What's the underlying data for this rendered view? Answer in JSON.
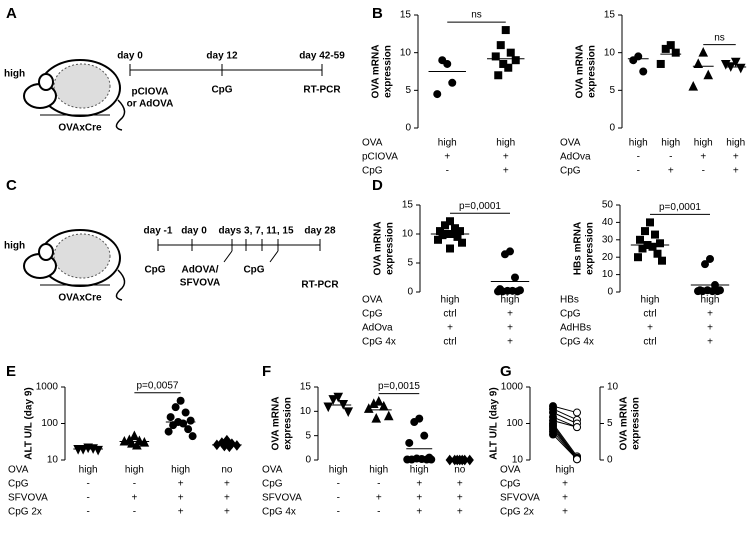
{
  "panel_letters": [
    "A",
    "B",
    "C",
    "D",
    "E",
    "F",
    "G"
  ],
  "diagrams": [
    {
      "group_label": "high",
      "mouse_label": "OVAxCre",
      "timepoints": [
        {
          "day": "day 0",
          "event": [
            "pCIOVA",
            "or AdOVA"
          ]
        },
        {
          "day": "day 12",
          "event": [
            "CpG"
          ]
        },
        {
          "day": "day 42-59",
          "event": [
            "RT-PCR"
          ]
        }
      ]
    },
    {
      "group_label": "high",
      "mouse_label": "OVAxCre",
      "timepoints": [
        {
          "day": "day -1",
          "event": [
            "CpG"
          ]
        },
        {
          "day": "day 0",
          "event": [
            "AdOVA/",
            "SFVOVA"
          ]
        },
        {
          "day": "days 3, 7, 11, 15",
          "event": [
            "CpG"
          ]
        },
        {
          "day": "day 28",
          "event": [
            "RT-PCR"
          ]
        }
      ]
    }
  ],
  "chart_data": [
    {
      "type": "dotplot",
      "ylabel": [
        "OVA mRNA",
        "expression"
      ],
      "ylim": [
        0,
        15
      ],
      "yticks": [
        0,
        5,
        10,
        15
      ],
      "color": "#000000",
      "groups": [
        {
          "marker": "circle",
          "values": [
            8.5,
            9,
            6,
            4.5
          ],
          "mean": 7.5
        },
        {
          "marker": "square",
          "values": [
            13,
            11,
            10,
            9.5,
            9,
            8.5,
            8,
            7
          ],
          "mean": 9.2
        }
      ],
      "brackets": [
        {
          "groups": [
            0,
            1
          ],
          "label": "ns"
        }
      ],
      "table": [
        {
          "label": "OVA",
          "cells": [
            "high",
            "high"
          ]
        },
        {
          "label": "pCIOVA",
          "cells": [
            "+",
            "+"
          ]
        },
        {
          "label": "CpG",
          "cells": [
            "-",
            "+"
          ]
        }
      ]
    },
    {
      "type": "dotplot",
      "ylabel": [
        "OVA mRNA",
        "expression"
      ],
      "ylim": [
        0,
        15
      ],
      "yticks": [
        0,
        5,
        10,
        15
      ],
      "color": "#000000",
      "groups": [
        {
          "marker": "circle",
          "values": [
            9.5,
            9,
            7.5
          ],
          "mean": 9.2
        },
        {
          "marker": "square",
          "values": [
            11,
            10.5,
            10,
            8.5
          ],
          "mean": 9.8
        },
        {
          "marker": "triangle",
          "values": [
            10,
            8.5,
            7,
            5.5
          ],
          "mean": 8.2
        },
        {
          "marker": "triangle-down",
          "values": [
            8.8,
            8.2,
            8,
            8.5
          ],
          "mean": 8.1
        }
      ],
      "brackets": [
        {
          "groups": [
            2,
            3
          ],
          "label": "ns"
        }
      ],
      "table": [
        {
          "label": "OVA",
          "cells": [
            "high",
            "high",
            "high",
            "high"
          ]
        },
        {
          "label": "AdOva",
          "cells": [
            "-",
            "-",
            "+",
            "+"
          ]
        },
        {
          "label": "CpG",
          "cells": [
            "-",
            "+",
            "-",
            "+"
          ]
        }
      ]
    },
    {
      "type": "dotplot",
      "ylabel": [
        "OVA mRNA",
        "expression"
      ],
      "ylim": [
        0,
        15
      ],
      "yticks": [
        0,
        5,
        10,
        15
      ],
      "color": "#000000",
      "groups": [
        {
          "marker": "square",
          "values": [
            12.2,
            11.5,
            11,
            10.5,
            10.5,
            10,
            10,
            9.8,
            9.5,
            9,
            8.5,
            7.5
          ],
          "mean": 10
        },
        {
          "marker": "circle",
          "values": [
            7,
            6.5,
            2.5,
            0.5,
            0.3,
            0.2,
            0.2,
            0.1,
            0.1,
            0.1
          ],
          "mean": 1.8
        }
      ],
      "brackets": [
        {
          "groups": [
            0,
            1
          ],
          "label": "p=0,0001"
        }
      ],
      "table": [
        {
          "label": "OVA",
          "cells": [
            "high",
            "high"
          ]
        },
        {
          "label": "CpG",
          "cells": [
            "ctrl",
            "+"
          ]
        },
        {
          "label": "AdOva",
          "cells": [
            "+",
            "+"
          ]
        },
        {
          "label": "CpG 4x",
          "cells": [
            "ctrl",
            "+"
          ]
        }
      ]
    },
    {
      "type": "dotplot",
      "ylabel": [
        "HBs mRNA",
        "expression"
      ],
      "ylim": [
        0,
        50
      ],
      "yticks": [
        0,
        10,
        20,
        30,
        40,
        50
      ],
      "color": "#000000",
      "groups": [
        {
          "marker": "square",
          "values": [
            40,
            35,
            33,
            30,
            28,
            27,
            26,
            25,
            22,
            20,
            18
          ],
          "mean": 27
        },
        {
          "marker": "circle",
          "values": [
            19,
            16,
            4,
            1,
            1,
            1,
            0.5,
            0.5,
            0.5,
            0.5
          ],
          "mean": 4
        }
      ],
      "brackets": [
        {
          "groups": [
            0,
            1
          ],
          "label": "p=0,0001"
        }
      ],
      "table": [
        {
          "label": "HBs",
          "cells": [
            "high",
            "high"
          ]
        },
        {
          "label": "CpG",
          "cells": [
            "ctrl",
            "+"
          ]
        },
        {
          "label": "AdHBs",
          "cells": [
            "+",
            "+"
          ]
        },
        {
          "label": "CpG 4x",
          "cells": [
            "ctrl",
            "+"
          ]
        }
      ]
    },
    {
      "type": "dotplot",
      "ylabel": [
        "ALT U/L (day 9)"
      ],
      "log": true,
      "ylim": [
        10,
        1000
      ],
      "yticks": [
        10,
        100,
        1000
      ],
      "color": "#000000",
      "groups": [
        {
          "marker": "triangle-down",
          "values": [
            22,
            20,
            21,
            20,
            19
          ],
          "mean": 20
        },
        {
          "marker": "triangle",
          "values": [
            45,
            35,
            33,
            32,
            30,
            28,
            25
          ],
          "mean": 32
        },
        {
          "marker": "circle",
          "values": [
            420,
            280,
            200,
            150,
            120,
            110,
            100,
            90,
            70,
            60,
            45
          ],
          "mean": 110
        },
        {
          "marker": "diamond",
          "values": [
            35,
            30,
            28,
            26,
            25,
            24,
            23
          ],
          "mean": 26
        }
      ],
      "brackets": [
        {
          "groups": [
            1,
            2
          ],
          "label": "p=0,0057"
        }
      ],
      "table": [
        {
          "label": "OVA",
          "cells": [
            "high",
            "high",
            "high",
            "no"
          ]
        },
        {
          "label": "CpG",
          "cells": [
            "-",
            "-",
            "+",
            "+"
          ]
        },
        {
          "label": "SFVOVA",
          "cells": [
            "-",
            "+",
            "+",
            "+"
          ]
        },
        {
          "label": "CpG 2x",
          "cells": [
            "-",
            "-",
            "+",
            "+"
          ]
        }
      ]
    },
    {
      "type": "dotplot",
      "ylabel": [
        "OVA mRNA",
        "expression"
      ],
      "ylim": [
        0,
        15
      ],
      "yticks": [
        0,
        5,
        10,
        15
      ],
      "color": "#000000",
      "groups": [
        {
          "marker": "triangle-down",
          "values": [
            13,
            12.5,
            11.5,
            11,
            10
          ],
          "mean": 11.3
        },
        {
          "marker": "triangle",
          "values": [
            12,
            11.5,
            11,
            10.5,
            9,
            8.5
          ],
          "mean": 10.3
        },
        {
          "marker": "circle",
          "values": [
            8.5,
            7.8,
            5,
            3.5,
            0.5,
            0.3,
            0.2,
            0.1,
            0.1,
            0.1,
            0.1
          ],
          "mean": 2.3
        },
        {
          "marker": "diamond",
          "values": [
            0,
            0,
            0,
            0,
            0,
            0,
            0
          ],
          "mean": null
        }
      ],
      "brackets": [
        {
          "groups": [
            1,
            2
          ],
          "label": "p=0,0015"
        }
      ],
      "table": [
        {
          "label": "OVA",
          "cells": [
            "high",
            "high",
            "high",
            "no"
          ]
        },
        {
          "label": "CpG",
          "cells": [
            "-",
            "-",
            "+",
            "+"
          ]
        },
        {
          "label": "SFVOVA",
          "cells": [
            "-",
            "+",
            "+",
            "+"
          ]
        },
        {
          "label": "CpG 4x",
          "cells": [
            "-",
            "-",
            "+",
            "+"
          ]
        }
      ]
    },
    {
      "type": "paired",
      "ylabel": [
        "ALT U/L (day 9)"
      ],
      "y2label": [
        "OVA mRNA",
        "expression"
      ],
      "log": true,
      "ylim": [
        10,
        1000
      ],
      "yticks": [
        10,
        100,
        1000
      ],
      "y2lim": [
        0,
        10
      ],
      "y2ticks": [
        0,
        5,
        10
      ],
      "color": "#000000",
      "series": [
        {
          "axis": "y",
          "filled": true,
          "values": [
            300,
            250,
            200,
            150,
            120,
            100,
            90,
            80,
            70,
            60,
            50
          ]
        },
        {
          "axis": "y2",
          "filled": false,
          "values": [
            6.5,
            5.5,
            5,
            4.5,
            4.5,
            0.5,
            0.3,
            0.2,
            0.2,
            0.1,
            0.1
          ]
        }
      ],
      "table": [
        {
          "label": "OVA",
          "cells": [
            "high"
          ]
        },
        {
          "label": "CpG",
          "cells": [
            "+"
          ]
        },
        {
          "label": "SFVOVA",
          "cells": [
            "+"
          ]
        },
        {
          "label": "CpG 2x",
          "cells": [
            "+"
          ]
        }
      ]
    }
  ]
}
